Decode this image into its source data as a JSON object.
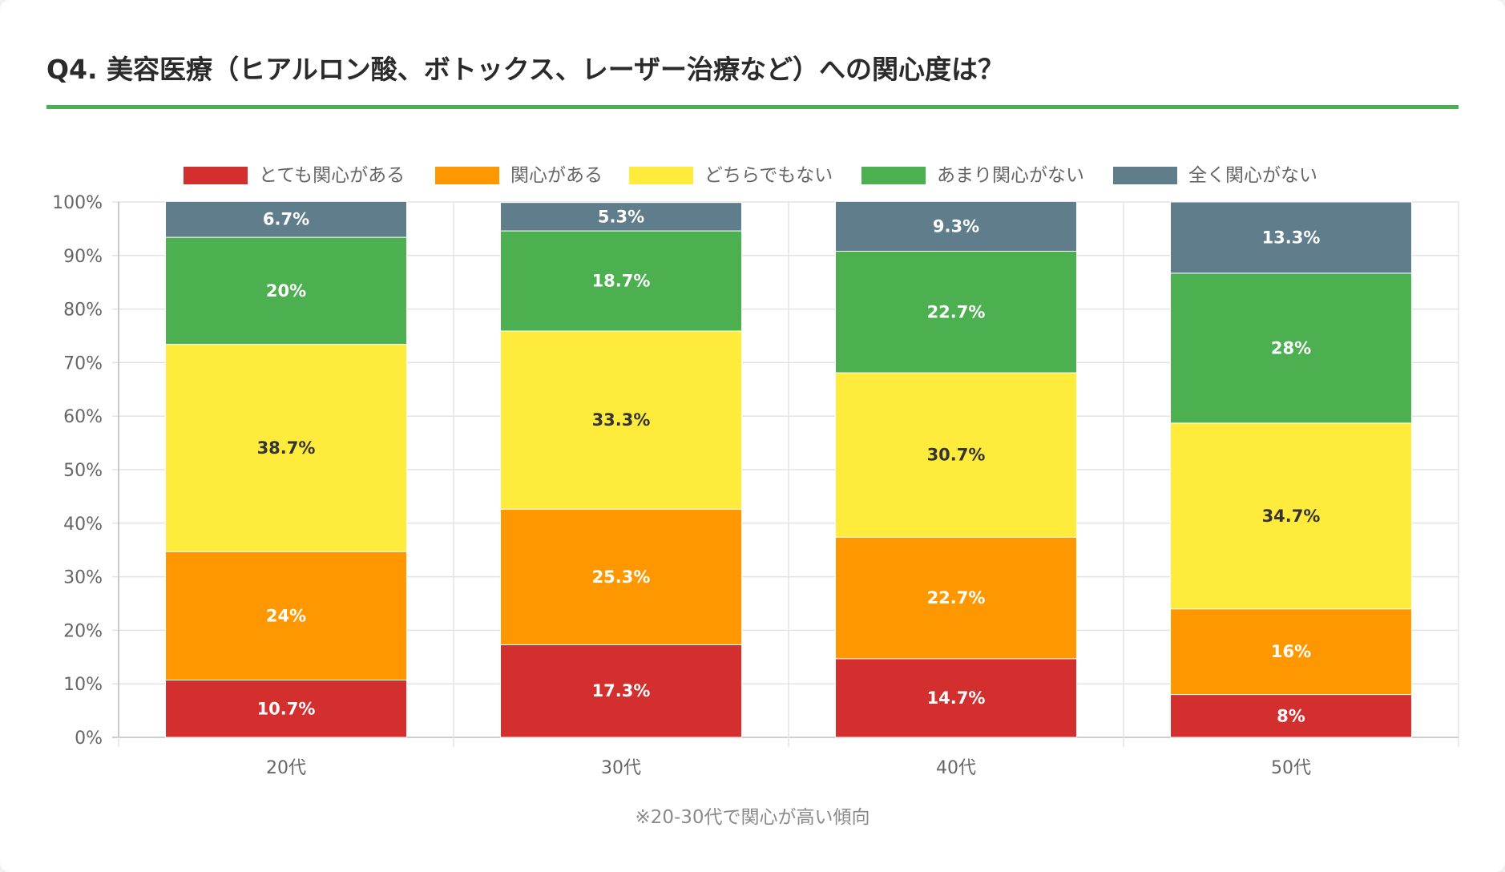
{
  "title": "Q4. 美容医療（ヒアルロン酸、ボトックス、レーザー治療など）への関心度は？",
  "note": "※20-30代で関心が高い傾向",
  "colors": {
    "title_rule": "#4caf50"
  },
  "chart_data": {
    "type": "bar",
    "stacked": true,
    "categories": [
      "20代",
      "30代",
      "40代",
      "50代"
    ],
    "series": [
      {
        "name": "とても関心がある",
        "color": "#d32f2f",
        "label_color": "#ffffff",
        "values": [
          10.7,
          17.3,
          14.7,
          8
        ],
        "labels": [
          "10.7%",
          "17.3%",
          "14.7%",
          "8%"
        ]
      },
      {
        "name": "関心がある",
        "color": "#ff9800",
        "label_color": "#ffffff",
        "values": [
          24,
          25.3,
          22.7,
          16
        ],
        "labels": [
          "24%",
          "25.3%",
          "22.7%",
          "16%"
        ]
      },
      {
        "name": "どちらでもない",
        "color": "#ffeb3b",
        "label_color": "#333333",
        "values": [
          38.7,
          33.3,
          30.7,
          34.7
        ],
        "labels": [
          "38.7%",
          "33.3%",
          "30.7%",
          "34.7%"
        ]
      },
      {
        "name": "あまり関心がない",
        "color": "#4caf50",
        "label_color": "#ffffff",
        "values": [
          20,
          18.7,
          22.7,
          28
        ],
        "labels": [
          "20%",
          "18.7%",
          "22.7%",
          "28%"
        ]
      },
      {
        "name": "全く関心がない",
        "color": "#607d8b",
        "label_color": "#ffffff",
        "values": [
          6.7,
          5.3,
          9.3,
          13.3
        ],
        "labels": [
          "6.7%",
          "5.3%",
          "9.3%",
          "13.3%"
        ]
      }
    ],
    "yticks": [
      "0%",
      "10%",
      "20%",
      "30%",
      "40%",
      "50%",
      "60%",
      "70%",
      "80%",
      "90%",
      "100%"
    ],
    "ylim": [
      0,
      100
    ],
    "grid": true,
    "legend": "top"
  }
}
